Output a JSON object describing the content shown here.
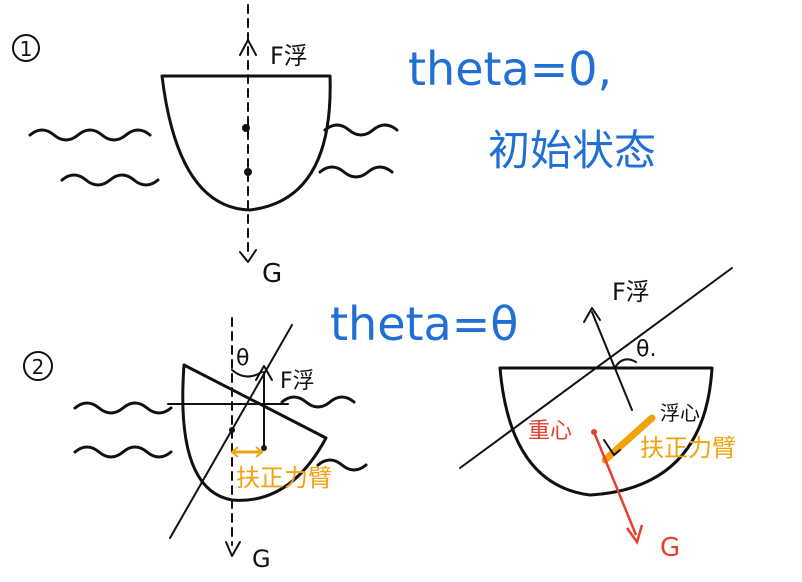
{
  "scene1": {
    "number": "①",
    "force_up": "F浮",
    "force_down": "G",
    "note_line1": "theta=0,",
    "note_line2": "初始状态"
  },
  "scene2": {
    "number": "②",
    "note": "theta=θ",
    "angle": "θ",
    "force_up": "F浮",
    "force_down": "G",
    "arm_label": "扶正力臂"
  },
  "scene3": {
    "force_up": "F浮",
    "angle": "θ.",
    "gravity_center": "重心",
    "buoyancy_center": "浮心",
    "arm_label": "扶正力臂",
    "force_down": "G"
  },
  "colors": {
    "blue": "#1f6fd6",
    "orange": "#f2a20a",
    "red": "#e4402e",
    "ink": "#111111"
  }
}
